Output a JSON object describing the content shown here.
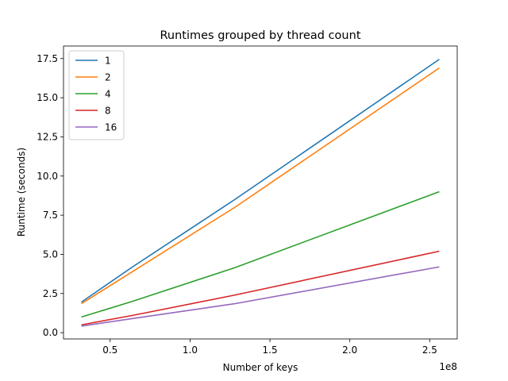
{
  "chart_data": {
    "type": "line",
    "title": "Runtimes grouped by thread count",
    "xlabel": "Number of keys",
    "ylabel": "Runtime (seconds)",
    "x_offset_label": "1e8",
    "x": [
      32000000,
      64000000,
      128000000,
      256000000
    ],
    "xlim": [
      20800000,
      267200000
    ],
    "ylim": [
      -0.4,
      18.3
    ],
    "x_ticks": [
      50000000,
      100000000,
      150000000,
      200000000,
      250000000
    ],
    "x_tick_labels": [
      "0.5",
      "1.0",
      "1.5",
      "2.0",
      "2.5"
    ],
    "y_ticks": [
      0,
      2.5,
      5,
      7.5,
      10,
      12.5,
      15,
      17.5
    ],
    "y_tick_labels": [
      "0.0",
      "2.5",
      "5.0",
      "7.5",
      "10.0",
      "12.5",
      "15.0",
      "17.5"
    ],
    "grid": false,
    "legend_position": "top-left",
    "series": [
      {
        "name": "1",
        "color": "#1f77b4",
        "values": [
          1.95,
          4.2,
          8.5,
          17.45
        ]
      },
      {
        "name": "2",
        "color": "#ff7f0e",
        "values": [
          1.85,
          3.9,
          8.0,
          16.9
        ]
      },
      {
        "name": "4",
        "color": "#2ca02c",
        "values": [
          1.0,
          2.0,
          4.15,
          9.0
        ]
      },
      {
        "name": "8",
        "color": "#d62728",
        "values": [
          0.5,
          1.1,
          2.4,
          5.2
        ]
      },
      {
        "name": "16",
        "color": "#9467bd",
        "values": [
          0.42,
          0.9,
          1.85,
          4.2
        ]
      }
    ]
  }
}
